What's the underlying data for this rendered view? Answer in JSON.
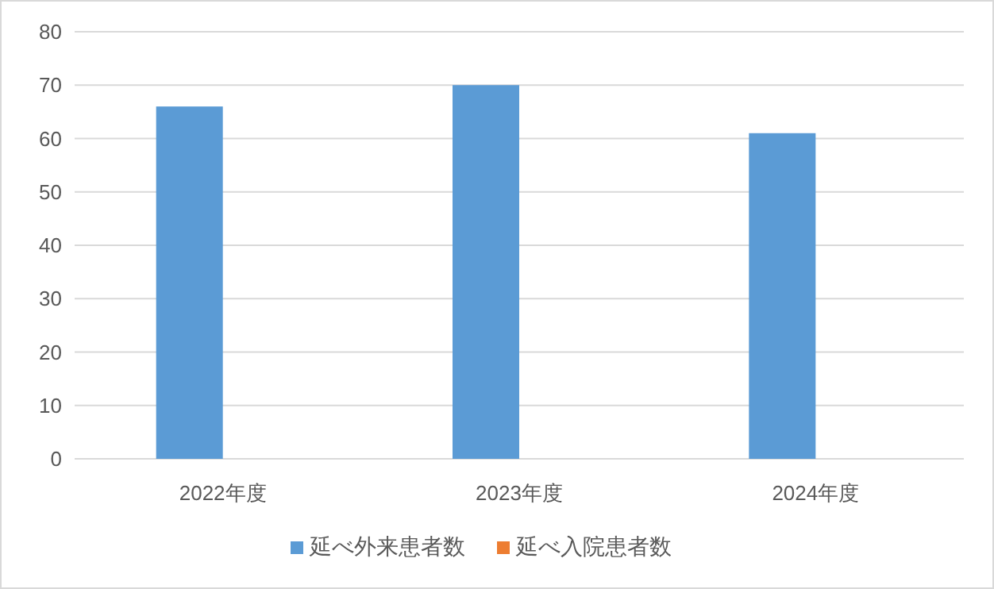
{
  "chart_data": {
    "type": "bar",
    "categories": [
      "2022年度",
      "2023年度",
      "2024年度"
    ],
    "series": [
      {
        "name": "延べ外来患者数",
        "color": "#5b9bd5",
        "values": [
          66,
          70,
          61
        ]
      },
      {
        "name": "延べ入院患者数",
        "color": "#ed7d31",
        "values": [
          0,
          0,
          0
        ]
      }
    ],
    "ylim": [
      0,
      80
    ],
    "yticks": [
      0,
      10,
      20,
      30,
      40,
      50,
      60,
      70,
      80
    ],
    "grid": "y",
    "legend": "bottom"
  }
}
